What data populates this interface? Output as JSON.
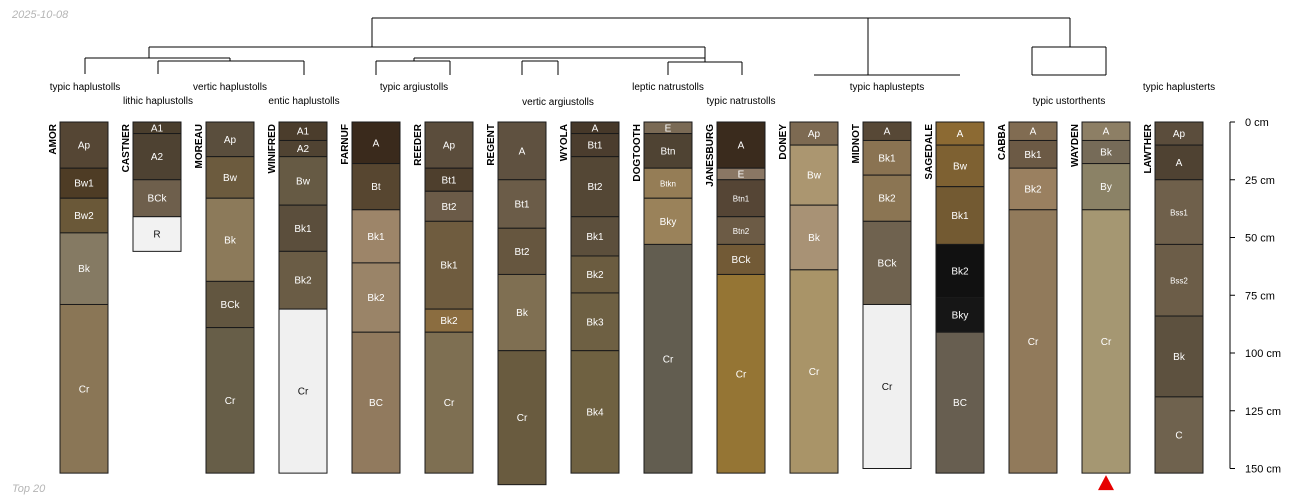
{
  "date": "2025-10-08",
  "footer": "Top 20",
  "depth_axis": {
    "max_cm": 150,
    "ticks": [
      {
        "value": 0,
        "label": "0 cm"
      },
      {
        "value": 25,
        "label": "25 cm"
      },
      {
        "value": 50,
        "label": "50 cm"
      },
      {
        "value": 75,
        "label": "75 cm"
      },
      {
        "value": 100,
        "label": "100 cm"
      },
      {
        "value": 125,
        "label": "125 cm"
      },
      {
        "value": 150,
        "label": "150 cm"
      }
    ]
  },
  "classes": [
    {
      "text": "typic haplustolls",
      "row": 1
    },
    {
      "text": "lithic haplustolls",
      "row": 2
    },
    {
      "text": "vertic haplustolls",
      "row": 1
    },
    {
      "text": "entic haplustolls",
      "row": 2
    },
    {
      "text": "typic argiustolls",
      "row": 1
    },
    {
      "text": "vertic argiustolls",
      "row": 2
    },
    {
      "text": "leptic natrustolls",
      "row": 1
    },
    {
      "text": "typic natrustolls",
      "row": 2
    },
    {
      "text": "typic haplustepts",
      "row": 1
    },
    {
      "text": "typic ustorthents",
      "row": 2
    },
    {
      "text": "typic haplusterts",
      "row": 1
    }
  ],
  "profiles": [
    {
      "name": "AMOR",
      "horizons": [
        {
          "name": "Ap",
          "top": 0,
          "bottom": 20,
          "color": "#554634"
        },
        {
          "name": "Bw1",
          "top": 20,
          "bottom": 33,
          "color": "#4e3c25"
        },
        {
          "name": "Bw2",
          "top": 33,
          "bottom": 48,
          "color": "#6a5838"
        },
        {
          "name": "Bk",
          "top": 48,
          "bottom": 79,
          "color": "#857a63"
        },
        {
          "name": "Cr",
          "top": 79,
          "bottom": 152,
          "color": "#8a7656"
        }
      ]
    },
    {
      "name": "CASTNER",
      "horizons": [
        {
          "name": "A1",
          "top": 0,
          "bottom": 5,
          "color": "#4a3e2d"
        },
        {
          "name": "A2",
          "top": 5,
          "bottom": 25,
          "color": "#4e4232"
        },
        {
          "name": "BCk",
          "top": 25,
          "bottom": 41,
          "color": "#6e5f4c"
        },
        {
          "name": "R",
          "top": 41,
          "bottom": 56,
          "color": "#f2f2f2",
          "dark": true
        }
      ]
    },
    {
      "name": "MOREAU",
      "horizons": [
        {
          "name": "Ap",
          "top": 0,
          "bottom": 15,
          "color": "#5a4e3d"
        },
        {
          "name": "Bw",
          "top": 15,
          "bottom": 33,
          "color": "#6c5b3e"
        },
        {
          "name": "Bk",
          "top": 33,
          "bottom": 69,
          "color": "#8c7a5a"
        },
        {
          "name": "BCk",
          "top": 69,
          "bottom": 89,
          "color": "#625640"
        },
        {
          "name": "Cr",
          "top": 89,
          "bottom": 152,
          "color": "#675e48"
        }
      ]
    },
    {
      "name": "WINIFRED",
      "horizons": [
        {
          "name": "A1",
          "top": 0,
          "bottom": 8,
          "color": "#4b3d2c"
        },
        {
          "name": "A2",
          "top": 8,
          "bottom": 15,
          "color": "#504332"
        },
        {
          "name": "Bw",
          "top": 15,
          "bottom": 36,
          "color": "#665a44"
        },
        {
          "name": "Bk1",
          "top": 36,
          "bottom": 56,
          "color": "#5b4e3c"
        },
        {
          "name": "Bk2",
          "top": 56,
          "bottom": 81,
          "color": "#6a5c45"
        },
        {
          "name": "Cr",
          "top": 81,
          "bottom": 152,
          "color": "#f0f0f0",
          "dark": true
        }
      ]
    },
    {
      "name": "FARNUF",
      "horizons": [
        {
          "name": "A",
          "top": 0,
          "bottom": 18,
          "color": "#3a2a1c"
        },
        {
          "name": "Bt",
          "top": 18,
          "bottom": 38,
          "color": "#574630"
        },
        {
          "name": "Bk1",
          "top": 38,
          "bottom": 61,
          "color": "#9d8569"
        },
        {
          "name": "Bk2",
          "top": 61,
          "bottom": 91,
          "color": "#9a8468"
        },
        {
          "name": "BC",
          "top": 91,
          "bottom": 152,
          "color": "#917a5e"
        }
      ]
    },
    {
      "name": "REEDER",
      "horizons": [
        {
          "name": "Ap",
          "top": 0,
          "bottom": 20,
          "color": "#5b4d3c"
        },
        {
          "name": "Bt1",
          "top": 20,
          "bottom": 30,
          "color": "#4e3f2d"
        },
        {
          "name": "Bt2",
          "top": 30,
          "bottom": 43,
          "color": "#6b5b48"
        },
        {
          "name": "Bk1",
          "top": 43,
          "bottom": 81,
          "color": "#6f5c3f"
        },
        {
          "name": "Bk2",
          "top": 81,
          "bottom": 91,
          "color": "#8b6d40"
        },
        {
          "name": "Cr",
          "top": 91,
          "bottom": 152,
          "color": "#7e6f52"
        }
      ]
    },
    {
      "name": "REGENT",
      "horizons": [
        {
          "name": "A",
          "top": 0,
          "bottom": 25,
          "color": "#5f5140"
        },
        {
          "name": "Bt1",
          "top": 25,
          "bottom": 46,
          "color": "#6b5c48"
        },
        {
          "name": "Bt2",
          "top": 46,
          "bottom": 66,
          "color": "#66563f"
        },
        {
          "name": "Bk",
          "top": 66,
          "bottom": 99,
          "color": "#7f6f52"
        },
        {
          "name": "Cr",
          "top": 99,
          "bottom": 157,
          "color": "#695b3f"
        }
      ]
    },
    {
      "name": "WYOLA",
      "horizons": [
        {
          "name": "A",
          "top": 0,
          "bottom": 5,
          "color": "#463829"
        },
        {
          "name": "Bt1",
          "top": 5,
          "bottom": 15,
          "color": "#4b3d2e"
        },
        {
          "name": "Bt2",
          "top": 15,
          "bottom": 41,
          "color": "#544735"
        },
        {
          "name": "Bk1",
          "top": 41,
          "bottom": 58,
          "color": "#5c4f3c"
        },
        {
          "name": "Bk2",
          "top": 58,
          "bottom": 74,
          "color": "#6b5c40"
        },
        {
          "name": "Bk3",
          "top": 74,
          "bottom": 99,
          "color": "#6e6043"
        },
        {
          "name": "Bk4",
          "top": 99,
          "bottom": 152,
          "color": "#6f6141"
        }
      ]
    },
    {
      "name": "DOGTOOTH",
      "horizons": [
        {
          "name": "E",
          "top": 0,
          "bottom": 5,
          "color": "#7a6a55"
        },
        {
          "name": "Btn",
          "top": 5,
          "bottom": 20,
          "color": "#4f4333"
        },
        {
          "name": "Btkn",
          "top": 20,
          "bottom": 33,
          "color": "#957d56",
          "tiny": true
        },
        {
          "name": "Bky",
          "top": 33,
          "bottom": 53,
          "color": "#9a825a"
        },
        {
          "name": "Cr",
          "top": 53,
          "bottom": 152,
          "color": "#625d50"
        }
      ]
    },
    {
      "name": "JANESBURG",
      "horizons": [
        {
          "name": "A",
          "top": 0,
          "bottom": 20,
          "color": "#3a2b1d"
        },
        {
          "name": "E",
          "top": 20,
          "bottom": 25,
          "color": "#8a7764"
        },
        {
          "name": "Btn1",
          "top": 25,
          "bottom": 41,
          "color": "#554535",
          "tiny": true
        },
        {
          "name": "Btn2",
          "top": 41,
          "bottom": 53,
          "color": "#6c5b45",
          "tiny": true
        },
        {
          "name": "BCk",
          "top": 53,
          "bottom": 66,
          "color": "#725a36"
        },
        {
          "name": "Cr",
          "top": 66,
          "bottom": 152,
          "color": "#957534"
        }
      ]
    },
    {
      "name": "DONEY",
      "horizons": [
        {
          "name": "Ap",
          "top": 0,
          "bottom": 10,
          "color": "#7d6a52"
        },
        {
          "name": "Bw",
          "top": 10,
          "bottom": 36,
          "color": "#ab9670"
        },
        {
          "name": "Bk",
          "top": 36,
          "bottom": 64,
          "color": "#a89275"
        },
        {
          "name": "Cr",
          "top": 64,
          "bottom": 152,
          "color": "#a99468"
        }
      ]
    },
    {
      "name": "MIDNOT",
      "horizons": [
        {
          "name": "A",
          "top": 0,
          "bottom": 8,
          "color": "#574836"
        },
        {
          "name": "Bk1",
          "top": 8,
          "bottom": 23,
          "color": "#8a7352"
        },
        {
          "name": "Bk2",
          "top": 23,
          "bottom": 43,
          "color": "#8b7553"
        },
        {
          "name": "BCk",
          "top": 43,
          "bottom": 79,
          "color": "#6f624f"
        },
        {
          "name": "Cr",
          "top": 79,
          "bottom": 150,
          "color": "#f0f0f0",
          "dark": true
        }
      ]
    },
    {
      "name": "SAGEDALE",
      "horizons": [
        {
          "name": "A",
          "top": 0,
          "bottom": 10,
          "color": "#8c6a33"
        },
        {
          "name": "Bw",
          "top": 10,
          "bottom": 28,
          "color": "#7e6132"
        },
        {
          "name": "Bk1",
          "top": 28,
          "bottom": 53,
          "color": "#735a32"
        },
        {
          "name": "Bk2",
          "top": 53,
          "bottom": 76,
          "color": "#111111"
        },
        {
          "name": "Bky",
          "top": 76,
          "bottom": 91,
          "color": "#161616"
        },
        {
          "name": "BC",
          "top": 91,
          "bottom": 152,
          "color": "#675e50"
        }
      ]
    },
    {
      "name": "CABBA",
      "horizons": [
        {
          "name": "A",
          "top": 0,
          "bottom": 8,
          "color": "#816c52"
        },
        {
          "name": "Bk1",
          "top": 8,
          "bottom": 20,
          "color": "#6c5a45"
        },
        {
          "name": "Bk2",
          "top": 20,
          "bottom": 38,
          "color": "#9a8060"
        },
        {
          "name": "Cr",
          "top": 38,
          "bottom": 152,
          "color": "#917a5b"
        }
      ]
    },
    {
      "name": "WAYDEN",
      "horizons": [
        {
          "name": "A",
          "top": 0,
          "bottom": 8,
          "color": "#8d7f65"
        },
        {
          "name": "Bk",
          "top": 8,
          "bottom": 18,
          "color": "#766b58"
        },
        {
          "name": "By",
          "top": 18,
          "bottom": 38,
          "color": "#8b8266"
        },
        {
          "name": "Cr",
          "top": 38,
          "bottom": 152,
          "color": "#a59772"
        }
      ],
      "marker": true
    },
    {
      "name": "LAWTHER",
      "horizons": [
        {
          "name": "Ap",
          "top": 0,
          "bottom": 10,
          "color": "#5b4d3c"
        },
        {
          "name": "A",
          "top": 10,
          "bottom": 25,
          "color": "#4f4232"
        },
        {
          "name": "Bss1",
          "top": 25,
          "bottom": 53,
          "color": "#6f604b",
          "tiny": true
        },
        {
          "name": "Bss2",
          "top": 53,
          "bottom": 84,
          "color": "#6c5d48",
          "tiny": true
        },
        {
          "name": "Bk",
          "top": 84,
          "bottom": 119,
          "color": "#5d513f"
        },
        {
          "name": "C",
          "top": 119,
          "bottom": 152,
          "color": "#6f624e"
        }
      ]
    }
  ]
}
